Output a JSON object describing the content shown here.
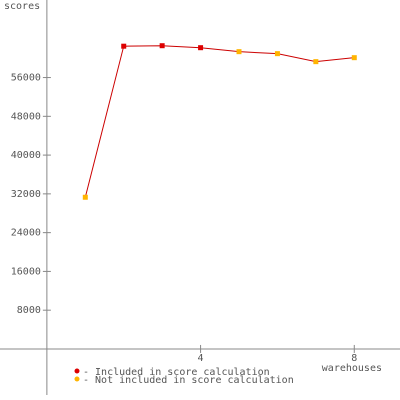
{
  "chart_data": {
    "type": "line",
    "y_label": "scores",
    "x_label": "warehouses",
    "x": [
      1,
      2,
      3,
      4,
      5,
      6,
      7,
      8
    ],
    "series": [
      {
        "color": "#cc0000",
        "values": [
          31300,
          62470,
          62570,
          62160,
          61340,
          60930,
          59280,
          60100
        ],
        "point_status": [
          1,
          0,
          0,
          0,
          1,
          1,
          1,
          1
        ]
      }
    ],
    "legend": [
      {
        "name": "- Included in score calculation",
        "color": "#dd0000"
      },
      {
        "name": "- Not included in score calculation",
        "color": "#ffb400"
      }
    ],
    "xlim": [
      -1.22,
      9.19
    ],
    "ylim": [
      -9500,
      72000
    ],
    "xticks": [
      4,
      8
    ],
    "yticks": [
      8000,
      16000,
      24000,
      32000,
      40000,
      48000,
      56000
    ]
  }
}
